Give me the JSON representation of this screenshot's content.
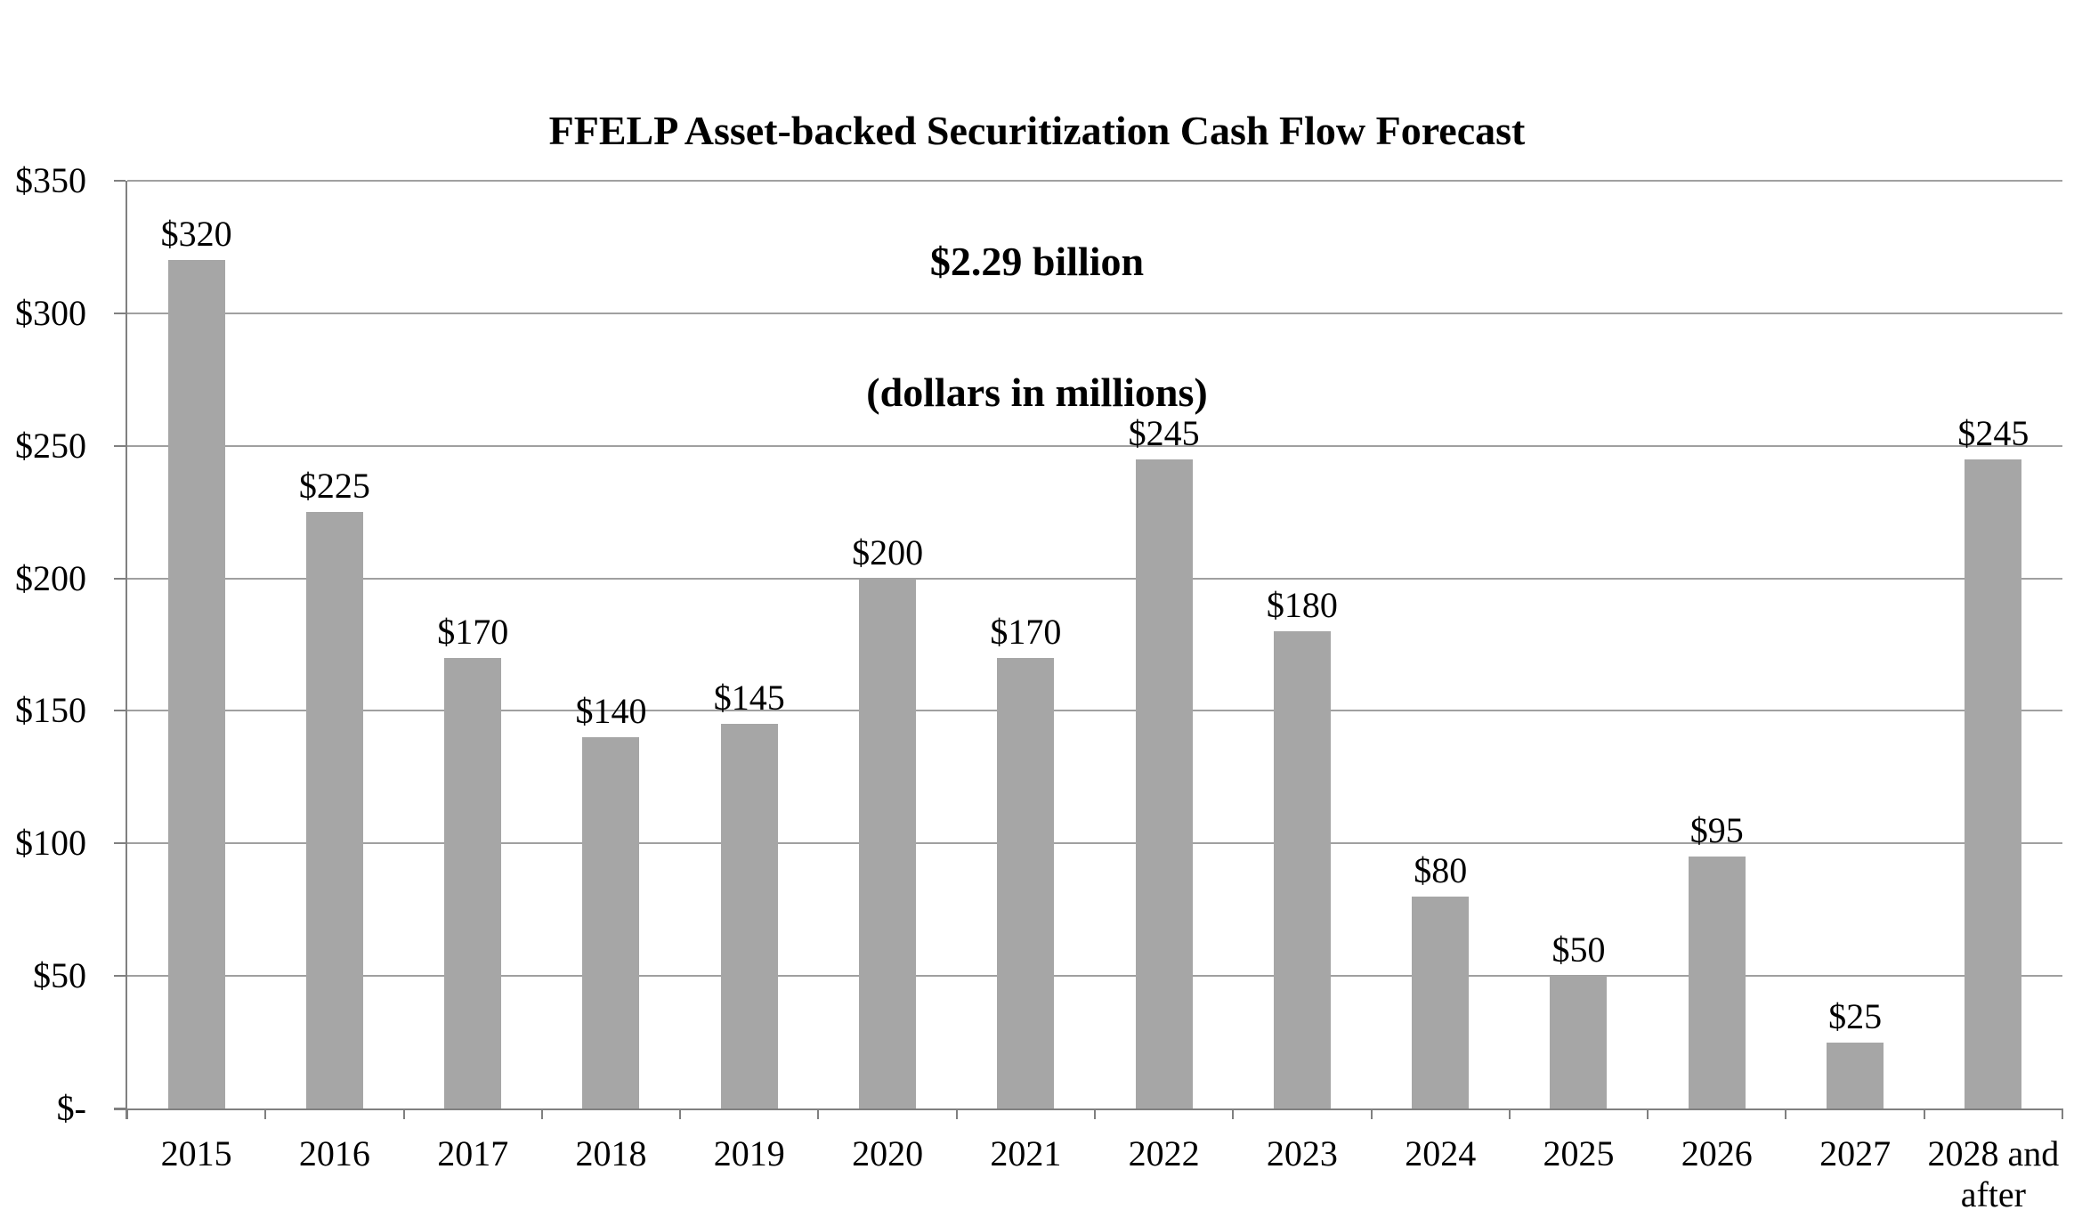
{
  "title": {
    "line1": "FFELP Asset-backed Securitization Cash Flow Forecast",
    "line2": "$2.29 billion",
    "line3": "(dollars in millions)"
  },
  "chart_data": {
    "type": "bar",
    "title": "FFELP Asset-backed Securitization Cash Flow Forecast",
    "subtitle": "$2.29 billion",
    "units_note": "(dollars in millions)",
    "categories": [
      "2015",
      "2016",
      "2017",
      "2018",
      "2019",
      "2020",
      "2021",
      "2022",
      "2023",
      "2024",
      "2025",
      "2026",
      "2027",
      "2028 and after"
    ],
    "values": [
      320,
      225,
      170,
      140,
      145,
      200,
      170,
      245,
      180,
      80,
      50,
      95,
      25,
      245
    ],
    "data_labels": [
      "$320",
      "$225",
      "$170",
      "$140",
      "$145",
      "$200",
      "$170",
      "$245",
      "$180",
      "$80",
      "$50",
      "$95",
      "$25",
      "$245"
    ],
    "total_millions": 2290,
    "xlabel": "",
    "ylabel": "",
    "ylim": [
      0,
      350
    ],
    "y_tick_step": 50,
    "y_ticks": [
      {
        "value": 350,
        "label": "$350"
      },
      {
        "value": 300,
        "label": "$300"
      },
      {
        "value": 250,
        "label": "$250"
      },
      {
        "value": 200,
        "label": "$200"
      },
      {
        "value": 150,
        "label": "$150"
      },
      {
        "value": 100,
        "label": "$100"
      },
      {
        "value": 50,
        "label": "$50"
      },
      {
        "value": 0,
        "label": "$-"
      }
    ],
    "grid": true,
    "legend_position": "none",
    "bar_color": "#a6a6a6",
    "gridline_color": "#a0a0a0",
    "axis_color": "#808080",
    "text_color": "#000000",
    "background_color": "#ffffff"
  }
}
